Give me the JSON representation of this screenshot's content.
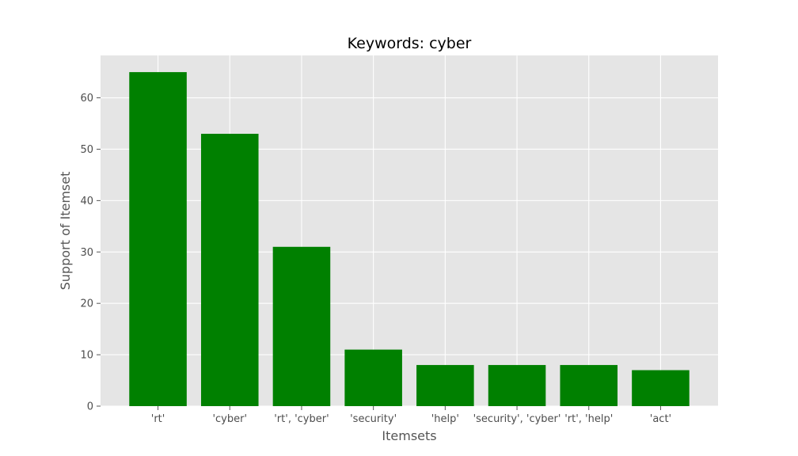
{
  "chart_data": {
    "type": "bar",
    "title": "Keywords: cyber",
    "xlabel": "Itemsets",
    "ylabel": "Support of Itemset",
    "categories": [
      "'rt'",
      "'cyber'",
      "'rt', 'cyber'",
      "'security'",
      "'help'",
      "'security', 'cyber'",
      "'rt', 'help'",
      "'act'"
    ],
    "values": [
      65,
      53,
      31,
      11,
      8,
      8,
      8,
      7
    ],
    "ylim": [
      0,
      68.25
    ],
    "yticks": [
      0,
      10,
      20,
      30,
      40,
      50,
      60
    ],
    "grid": true,
    "legend": "none",
    "colors": {
      "bar": "#008000",
      "plot_background": "#e5e5e5",
      "grid": "#ffffff",
      "text": "#4d4d4d"
    }
  }
}
